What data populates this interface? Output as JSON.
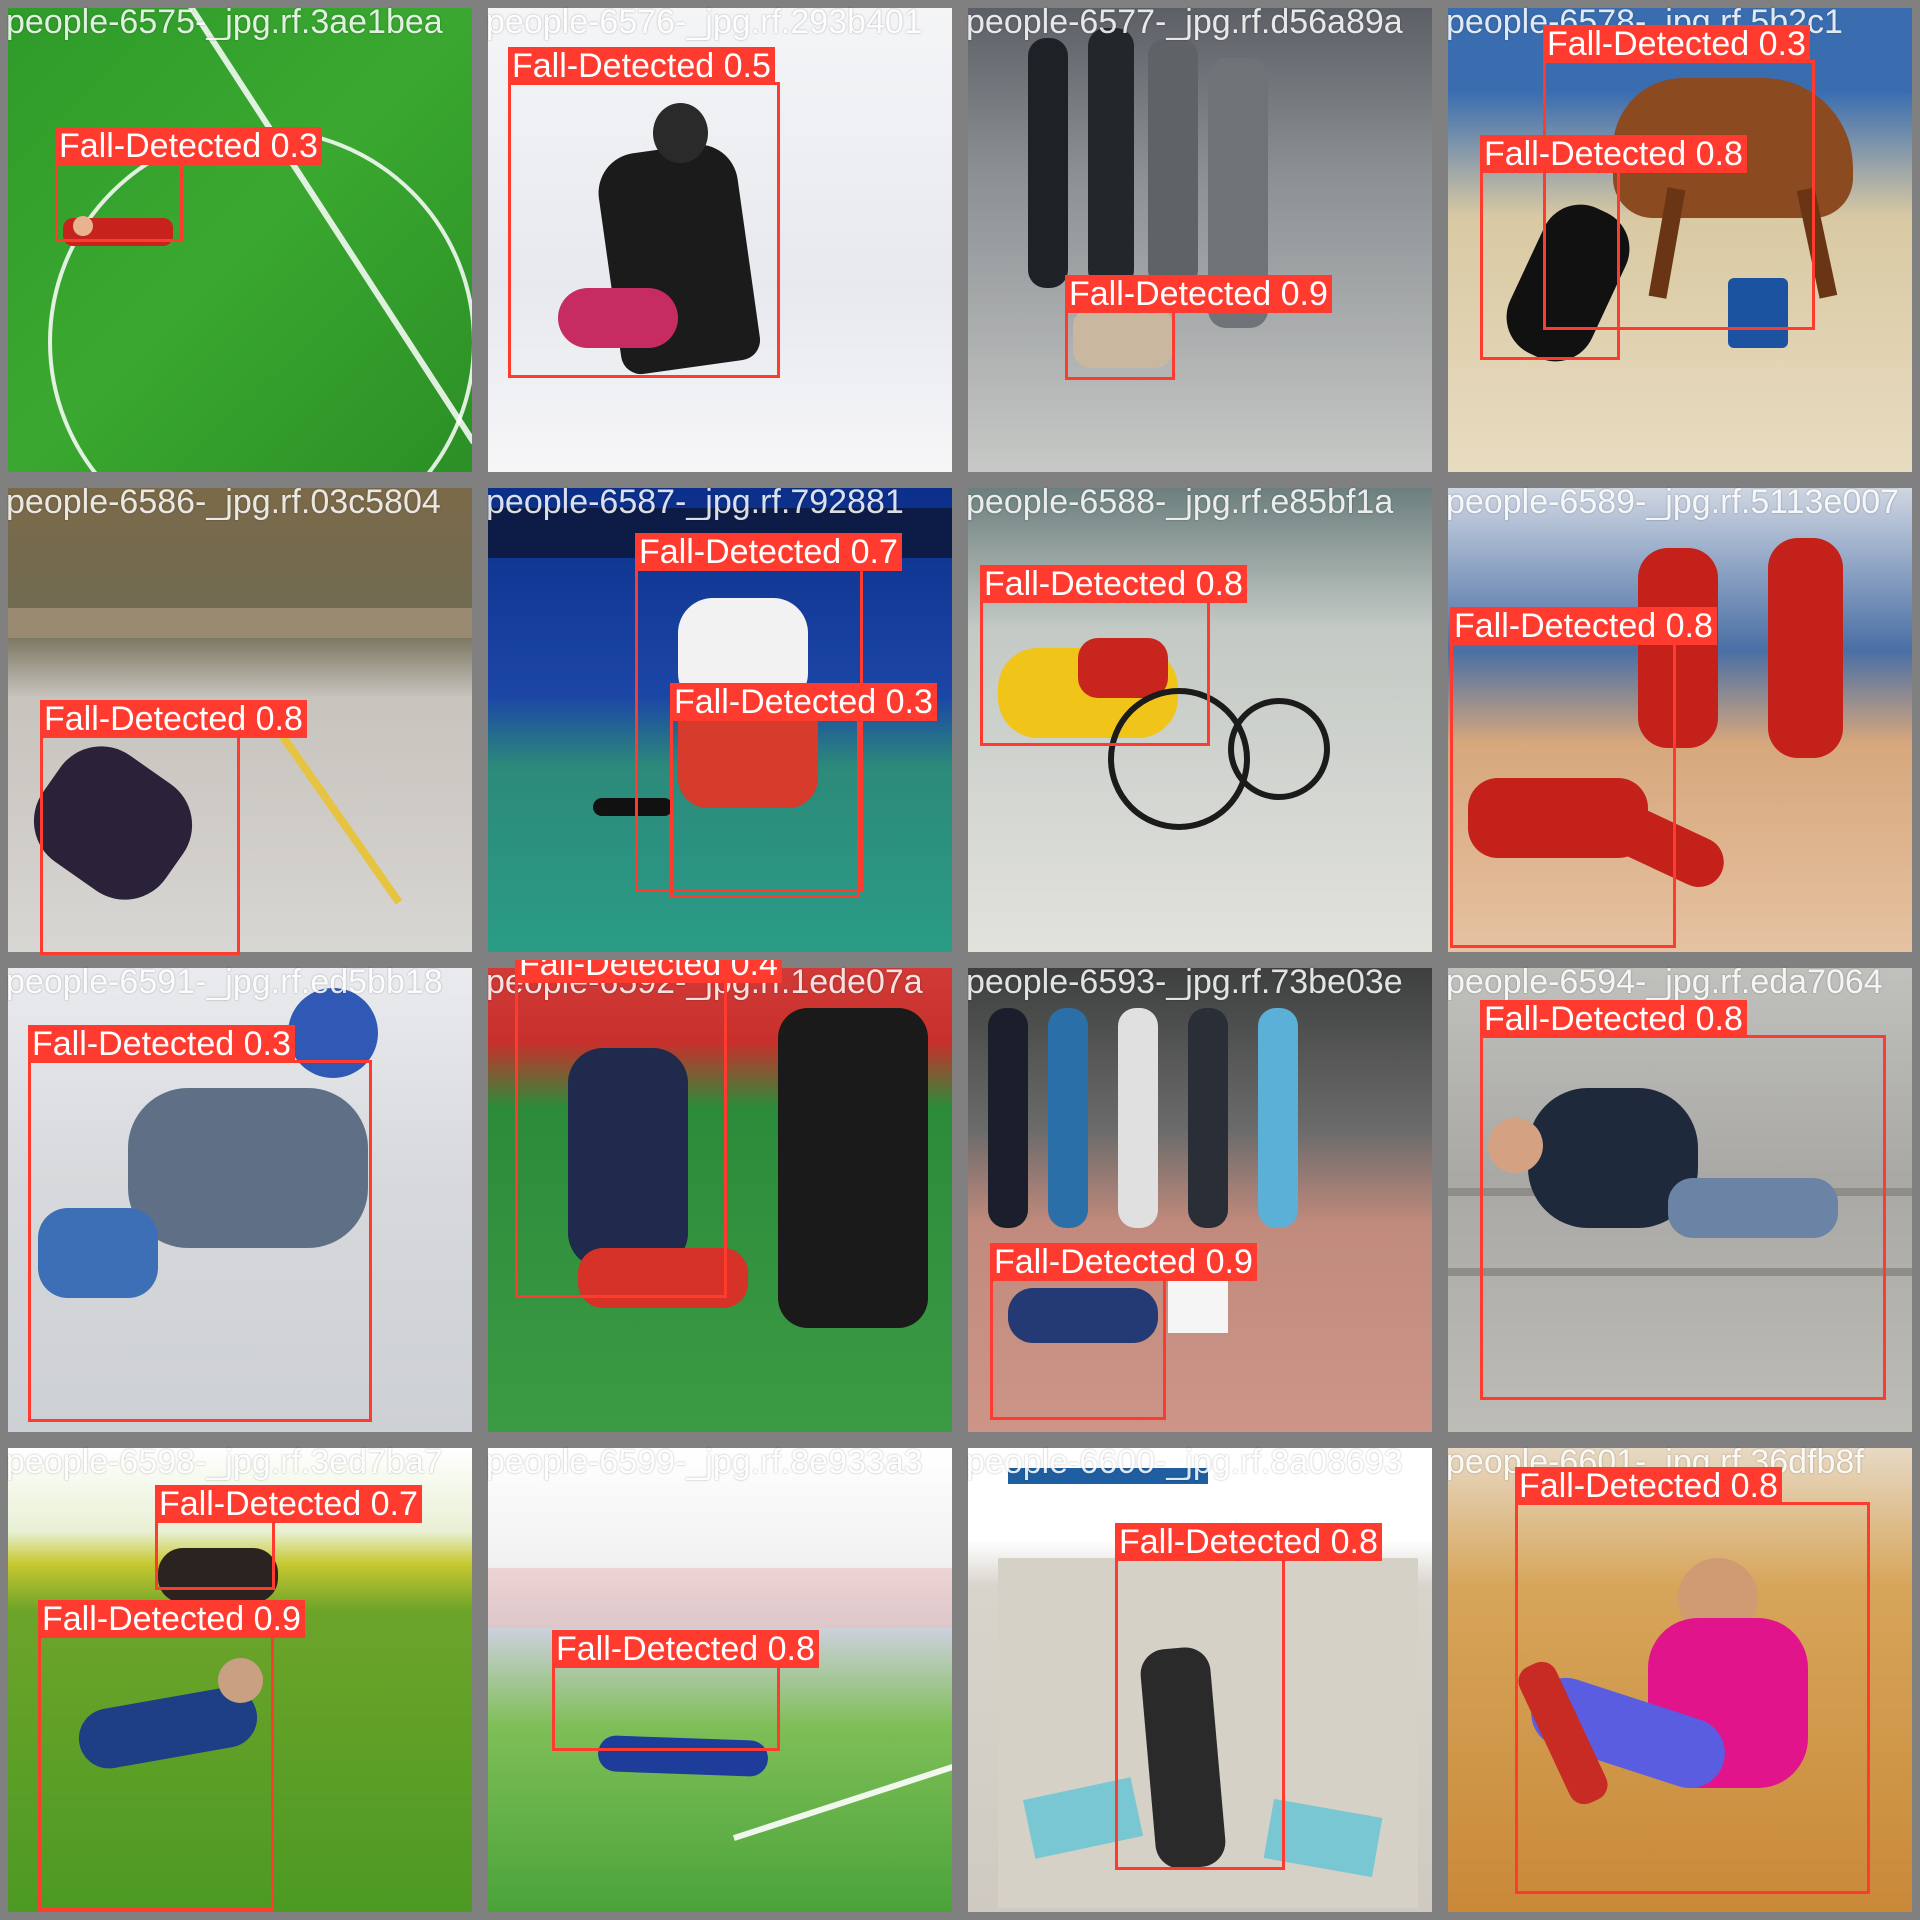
{
  "grid": {
    "columns": 4,
    "rows": 4
  },
  "colors": {
    "box": "#ff3b30",
    "label_text": "#ffffff",
    "filename_text": "#ffffff",
    "background": "#7f7f7f"
  },
  "tiles": [
    {
      "filename": "people-6575-_jpg.rf.3ae1bea",
      "detections": [
        {
          "label": "Fall-Detected 0.3"
        }
      ]
    },
    {
      "filename": "people-6576-_jpg.rf.293b401",
      "detections": [
        {
          "label": "Fall-Detected 0.5"
        }
      ]
    },
    {
      "filename": "people-6577-_jpg.rf.d56a89a",
      "detections": [
        {
          "label": "Fall-Detected 0.9"
        }
      ]
    },
    {
      "filename": "people-6578-_jpg.rf.5b2c1",
      "detections": [
        {
          "label": "Fall-Detected 0.3"
        },
        {
          "label": "Fall-Detected 0.8"
        }
      ]
    },
    {
      "filename": "people-6586-_jpg.rf.03c5804",
      "detections": [
        {
          "label": "Fall-Detected 0.8"
        }
      ]
    },
    {
      "filename": "people-6587-_jpg.rf.792881",
      "detections": [
        {
          "label": "Fall-Detected 0.7"
        },
        {
          "label": "Fall-Detected 0.3"
        }
      ]
    },
    {
      "filename": "people-6588-_jpg.rf.e85bf1a",
      "detections": [
        {
          "label": "Fall-Detected 0.8"
        }
      ]
    },
    {
      "filename": "people-6589-_jpg.rf.5113e007",
      "detections": [
        {
          "label": "Fall-Detected 0.8"
        }
      ]
    },
    {
      "filename": "people-6591-_jpg.rf.ed5bb18",
      "detections": [
        {
          "label": "Fall-Detected 0.3"
        }
      ]
    },
    {
      "filename": "people-6592-_jpg.rf.1ede07a",
      "detections": [
        {
          "label": "Fall-Detected 0.4"
        }
      ]
    },
    {
      "filename": "people-6593-_jpg.rf.73be03e",
      "detections": [
        {
          "label": "Fall-Detected 0.9"
        }
      ]
    },
    {
      "filename": "people-6594-_jpg.rf.eda7064",
      "detections": [
        {
          "label": "Fall-Detected 0.8"
        }
      ]
    },
    {
      "filename": "people-6598-_jpg.rf.3ed7ba7",
      "detections": [
        {
          "label": "Fall-Detected 0.7"
        },
        {
          "label": "Fall-Detected 0.9"
        }
      ]
    },
    {
      "filename": "people-6599-_jpg.rf.8e933a3",
      "detections": [
        {
          "label": "Fall-Detected 0.8"
        }
      ]
    },
    {
      "filename": "people-6600-_jpg.rf.8a08693",
      "detections": [
        {
          "label": "Fall-Detected 0.8"
        }
      ]
    },
    {
      "filename": "people-6601-_jpg.rf.36dfb8f",
      "detections": [
        {
          "label": "Fall-Detected 0.8"
        }
      ]
    }
  ]
}
